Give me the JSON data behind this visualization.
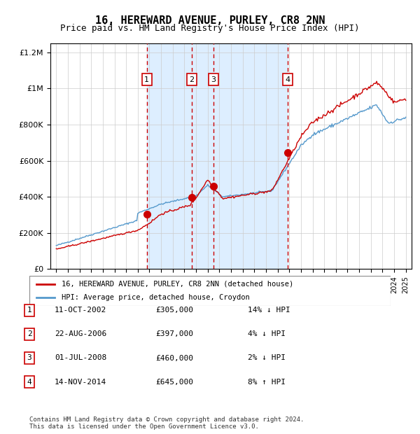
{
  "title": "16, HEREWARD AVENUE, PURLEY, CR8 2NN",
  "subtitle": "Price paid vs. HM Land Registry's House Price Index (HPI)",
  "legend_line1": "16, HEREWARD AVENUE, PURLEY, CR8 2NN (detached house)",
  "legend_line2": "HPI: Average price, detached house, Croydon",
  "footer1": "Contains HM Land Registry data © Crown copyright and database right 2024.",
  "footer2": "This data is licensed under the Open Government Licence v3.0.",
  "sales": [
    {
      "num": 1,
      "date": "11-OCT-2002",
      "price": 305000,
      "pct": "14%",
      "dir": "↓",
      "x_year": 2002.78
    },
    {
      "num": 2,
      "date": "22-AUG-2006",
      "price": 397000,
      "pct": "4%",
      "dir": "↓",
      "x_year": 2006.64
    },
    {
      "num": 3,
      "date": "01-JUL-2008",
      "price": 460000,
      "pct": "2%",
      "dir": "↓",
      "x_year": 2008.5
    },
    {
      "num": 4,
      "date": "14-NOV-2014",
      "price": 645000,
      "pct": "8%",
      "dir": "↑",
      "x_year": 2014.87
    }
  ],
  "red_line_color": "#cc0000",
  "blue_line_color": "#5599cc",
  "shade_color": "#ddeeff",
  "grid_color": "#cccccc",
  "dot_color": "#cc0000",
  "box_color": "#cc0000",
  "ylim": [
    0,
    1250000
  ],
  "xlim_start": 1994.5,
  "xlim_end": 2025.5,
  "background_color": "#ffffff"
}
